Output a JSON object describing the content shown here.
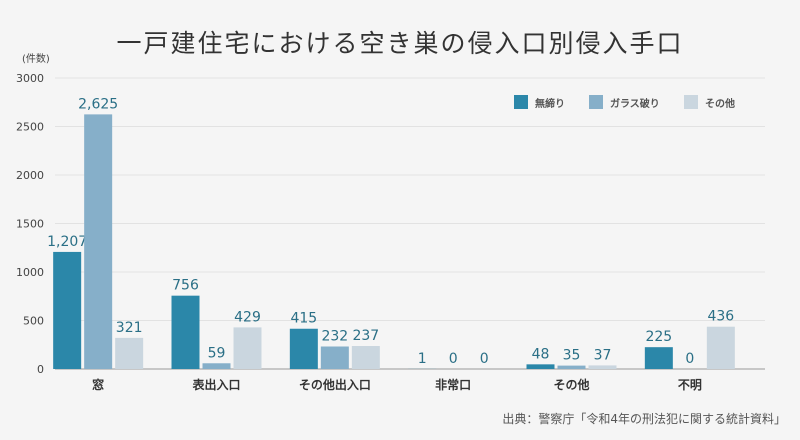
{
  "chart_data": {
    "type": "bar",
    "title": "一戸建住宅における空き巣の侵入口別侵入手口",
    "ylabel": "(件数)",
    "xlabel": "",
    "ylim": [
      0,
      3000
    ],
    "yticks": [
      "0",
      "500",
      "1000",
      "1500",
      "2000",
      "2500",
      "3000"
    ],
    "categories": [
      "窓",
      "表出入口",
      "その他出入口",
      "非常口",
      "その他",
      "不明"
    ],
    "series": [
      {
        "name": "無締り",
        "color": "#2b87a9",
        "values": [
          1207,
          756,
          415,
          1,
          48,
          225
        ],
        "labels": [
          "1,207",
          "756",
          "415",
          "1",
          "48",
          "225"
        ]
      },
      {
        "name": "ガラス破り",
        "color": "#86afc9",
        "values": [
          2625,
          59,
          232,
          0,
          35,
          0
        ],
        "labels": [
          "2,625",
          "59",
          "232",
          "0",
          "35",
          "0"
        ]
      },
      {
        "name": "その他",
        "color": "#cad6df",
        "values": [
          321,
          429,
          237,
          0,
          37,
          436
        ],
        "labels": [
          "321",
          "429",
          "237",
          "0",
          "37",
          "436"
        ]
      }
    ],
    "legend_position": "top-right",
    "grid": true,
    "source": "出典：警察庁「令和4年の刑法犯に関する統計資料」"
  }
}
